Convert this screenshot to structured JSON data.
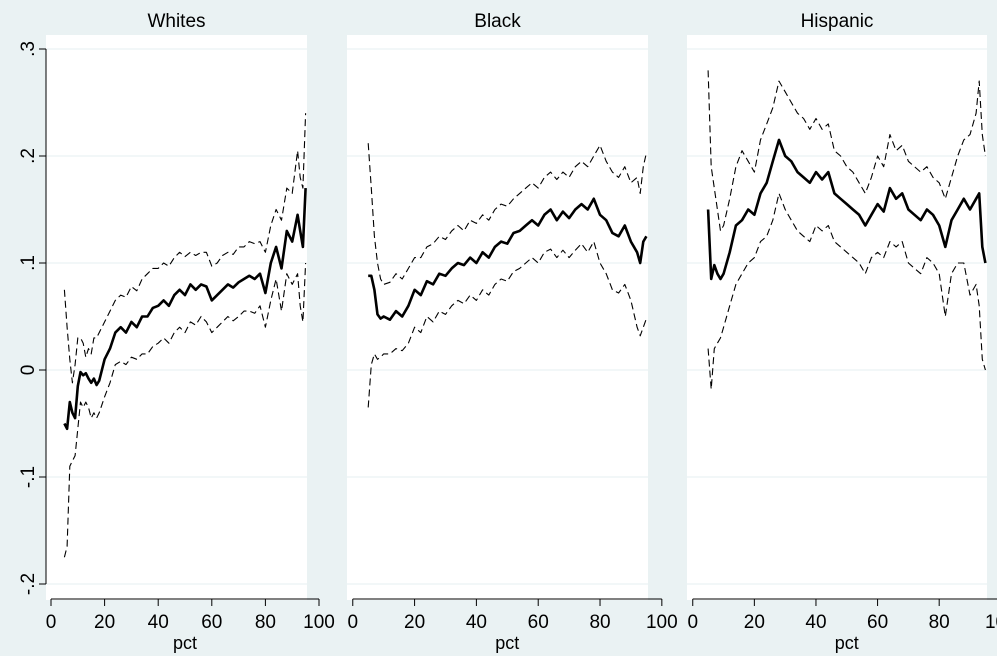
{
  "chart_data": {
    "type": "line",
    "shared_xlabel": "pct",
    "xlim": [
      0,
      100
    ],
    "ylim": [
      -0.2,
      0.3
    ],
    "x_ticks": [
      0,
      20,
      40,
      60,
      80,
      100
    ],
    "x_tick_labels": [
      "0",
      "20",
      "40",
      "60",
      "80",
      "100"
    ],
    "y_ticks": [
      -0.2,
      -0.1,
      0,
      0.1,
      0.2,
      0.3
    ],
    "y_tick_labels": [
      "-.2",
      "-.1",
      "0",
      ".1",
      ".2",
      ".3"
    ],
    "grid": true,
    "colors": {
      "background": "#eaf2f3",
      "panel": "#ffffff",
      "grid": "#eaf2f3",
      "line": "#000000"
    },
    "panels": [
      {
        "title": "Whites",
        "xlabel": "pct",
        "series": [
          {
            "style": "solid",
            "x": [
              5,
              6,
              7,
              8,
              9,
              10,
              11,
              12,
              13,
              14,
              15,
              16,
              17,
              18,
              20,
              22,
              24,
              26,
              28,
              30,
              32,
              34,
              36,
              38,
              40,
              42,
              44,
              46,
              48,
              50,
              52,
              54,
              56,
              58,
              60,
              62,
              64,
              66,
              68,
              70,
              72,
              74,
              76,
              78,
              80,
              82,
              84,
              86,
              88,
              90,
              92,
              93,
              94,
              95
            ],
            "y": [
              -0.05,
              -0.055,
              -0.03,
              -0.04,
              -0.045,
              -0.015,
              -0.002,
              -0.005,
              -0.003,
              -0.008,
              -0.012,
              -0.008,
              -0.014,
              -0.01,
              0.01,
              0.02,
              0.035,
              0.04,
              0.035,
              0.045,
              0.04,
              0.05,
              0.05,
              0.058,
              0.06,
              0.065,
              0.06,
              0.07,
              0.075,
              0.07,
              0.08,
              0.075,
              0.08,
              0.078,
              0.065,
              0.07,
              0.075,
              0.08,
              0.077,
              0.082,
              0.085,
              0.088,
              0.085,
              0.09,
              0.072,
              0.1,
              0.115,
              0.095,
              0.13,
              0.12,
              0.145,
              0.13,
              0.115,
              0.17
            ]
          },
          {
            "style": "dashed",
            "x": [
              5,
              6,
              7,
              8,
              9,
              10,
              11,
              12,
              13,
              14,
              15,
              16,
              17,
              18,
              20,
              22,
              24,
              26,
              28,
              30,
              32,
              34,
              36,
              38,
              40,
              42,
              44,
              46,
              48,
              50,
              52,
              54,
              56,
              58,
              60,
              62,
              64,
              66,
              68,
              70,
              72,
              74,
              76,
              78,
              80,
              82,
              84,
              86,
              88,
              90,
              92,
              93,
              94,
              95
            ],
            "y": [
              0.075,
              0.04,
              0.01,
              -0.012,
              0.005,
              0.03,
              0.03,
              0.025,
              0.012,
              0.02,
              0.015,
              0.03,
              0.03,
              0.035,
              0.045,
              0.055,
              0.065,
              0.07,
              0.068,
              0.078,
              0.074,
              0.085,
              0.09,
              0.095,
              0.095,
              0.1,
              0.097,
              0.105,
              0.11,
              0.106,
              0.11,
              0.107,
              0.11,
              0.11,
              0.097,
              0.1,
              0.107,
              0.11,
              0.108,
              0.115,
              0.115,
              0.12,
              0.118,
              0.12,
              0.11,
              0.135,
              0.15,
              0.14,
              0.17,
              0.165,
              0.205,
              0.18,
              0.17,
              0.24
            ]
          },
          {
            "style": "dashed",
            "x": [
              5,
              6,
              7,
              8,
              9,
              10,
              11,
              12,
              13,
              14,
              15,
              16,
              17,
              18,
              20,
              22,
              24,
              26,
              28,
              30,
              32,
              34,
              36,
              38,
              40,
              42,
              44,
              46,
              48,
              50,
              52,
              54,
              56,
              58,
              60,
              62,
              64,
              66,
              68,
              70,
              72,
              74,
              76,
              78,
              80,
              82,
              84,
              86,
              88,
              90,
              92,
              93,
              94,
              95
            ],
            "y": [
              -0.175,
              -0.165,
              -0.09,
              -0.085,
              -0.08,
              -0.055,
              -0.03,
              -0.035,
              -0.03,
              -0.035,
              -0.045,
              -0.04,
              -0.045,
              -0.04,
              -0.025,
              -0.012,
              0.005,
              0.008,
              0.005,
              0.012,
              0.01,
              0.015,
              0.015,
              0.022,
              0.025,
              0.03,
              0.025,
              0.035,
              0.04,
              0.035,
              0.045,
              0.042,
              0.05,
              0.045,
              0.035,
              0.04,
              0.045,
              0.05,
              0.046,
              0.05,
              0.055,
              0.055,
              0.053,
              0.06,
              0.04,
              0.065,
              0.085,
              0.055,
              0.09,
              0.08,
              0.09,
              0.06,
              0.045,
              0.1
            ]
          }
        ]
      },
      {
        "title": "Black",
        "xlabel": "pct",
        "series": [
          {
            "style": "solid",
            "x": [
              5,
              6,
              7,
              8,
              9,
              10,
              12,
              14,
              16,
              18,
              20,
              22,
              24,
              26,
              28,
              30,
              32,
              34,
              36,
              38,
              40,
              42,
              44,
              46,
              48,
              50,
              52,
              54,
              56,
              58,
              60,
              62,
              64,
              66,
              68,
              70,
              72,
              74,
              76,
              78,
              80,
              82,
              84,
              86,
              88,
              90,
              92,
              93,
              94,
              95
            ],
            "y": [
              0.088,
              0.088,
              0.075,
              0.052,
              0.048,
              0.05,
              0.047,
              0.055,
              0.05,
              0.06,
              0.075,
              0.07,
              0.083,
              0.08,
              0.09,
              0.088,
              0.095,
              0.1,
              0.098,
              0.105,
              0.1,
              0.11,
              0.105,
              0.115,
              0.12,
              0.118,
              0.128,
              0.13,
              0.135,
              0.14,
              0.135,
              0.145,
              0.15,
              0.14,
              0.148,
              0.142,
              0.15,
              0.155,
              0.15,
              0.16,
              0.145,
              0.14,
              0.128,
              0.125,
              0.135,
              0.12,
              0.11,
              0.1,
              0.12,
              0.125
            ]
          },
          {
            "style": "dashed",
            "x": [
              5,
              6,
              7,
              8,
              9,
              10,
              12,
              14,
              16,
              18,
              20,
              22,
              24,
              26,
              28,
              30,
              32,
              34,
              36,
              38,
              40,
              42,
              44,
              46,
              48,
              50,
              52,
              54,
              56,
              58,
              60,
              62,
              64,
              66,
              68,
              70,
              72,
              74,
              76,
              78,
              80,
              82,
              84,
              86,
              88,
              90,
              92,
              93,
              94,
              95
            ],
            "y": [
              0.212,
              0.17,
              0.125,
              0.1,
              0.085,
              0.08,
              0.082,
              0.09,
              0.085,
              0.095,
              0.105,
              0.105,
              0.115,
              0.118,
              0.125,
              0.122,
              0.13,
              0.135,
              0.13,
              0.14,
              0.137,
              0.145,
              0.14,
              0.15,
              0.155,
              0.153,
              0.16,
              0.165,
              0.17,
              0.175,
              0.17,
              0.18,
              0.185,
              0.178,
              0.185,
              0.18,
              0.19,
              0.195,
              0.19,
              0.2,
              0.21,
              0.195,
              0.185,
              0.18,
              0.19,
              0.175,
              0.18,
              0.165,
              0.19,
              0.203
            ]
          },
          {
            "style": "dashed",
            "x": [
              5,
              6,
              7,
              8,
              9,
              10,
              12,
              14,
              16,
              18,
              20,
              22,
              24,
              26,
              28,
              30,
              32,
              34,
              36,
              38,
              40,
              42,
              44,
              46,
              48,
              50,
              52,
              54,
              56,
              58,
              60,
              62,
              64,
              66,
              68,
              70,
              72,
              74,
              76,
              78,
              80,
              82,
              84,
              86,
              88,
              90,
              92,
              93,
              94,
              95
            ],
            "y": [
              -0.035,
              0.005,
              0.015,
              0.01,
              0.012,
              0.015,
              0.015,
              0.02,
              0.018,
              0.025,
              0.04,
              0.035,
              0.05,
              0.045,
              0.055,
              0.052,
              0.06,
              0.065,
              0.062,
              0.07,
              0.065,
              0.075,
              0.07,
              0.08,
              0.085,
              0.083,
              0.092,
              0.095,
              0.1,
              0.105,
              0.1,
              0.11,
              0.113,
              0.105,
              0.112,
              0.105,
              0.112,
              0.118,
              0.11,
              0.12,
              0.1,
              0.09,
              0.075,
              0.072,
              0.08,
              0.065,
              0.04,
              0.032,
              0.04,
              0.048
            ]
          }
        ]
      },
      {
        "title": "Hispanic",
        "xlabel": "pct",
        "series": [
          {
            "style": "solid",
            "x": [
              5,
              6,
              7,
              8,
              9,
              10,
              12,
              14,
              16,
              18,
              20,
              22,
              24,
              26,
              28,
              30,
              32,
              34,
              36,
              38,
              40,
              42,
              44,
              46,
              48,
              50,
              52,
              54,
              56,
              58,
              60,
              62,
              64,
              66,
              68,
              70,
              72,
              74,
              76,
              78,
              80,
              82,
              84,
              86,
              88,
              90,
              92,
              93,
              94,
              95
            ],
            "y": [
              0.15,
              0.085,
              0.098,
              0.09,
              0.085,
              0.09,
              0.11,
              0.135,
              0.14,
              0.15,
              0.145,
              0.165,
              0.175,
              0.195,
              0.215,
              0.2,
              0.195,
              0.185,
              0.18,
              0.175,
              0.185,
              0.178,
              0.185,
              0.165,
              0.16,
              0.155,
              0.15,
              0.145,
              0.135,
              0.145,
              0.155,
              0.148,
              0.17,
              0.16,
              0.165,
              0.15,
              0.145,
              0.14,
              0.15,
              0.145,
              0.135,
              0.115,
              0.14,
              0.15,
              0.16,
              0.15,
              0.16,
              0.165,
              0.115,
              0.1
            ]
          },
          {
            "style": "dashed",
            "x": [
              5,
              6,
              7,
              8,
              9,
              10,
              12,
              14,
              16,
              18,
              20,
              22,
              24,
              26,
              28,
              30,
              32,
              34,
              36,
              38,
              40,
              42,
              44,
              46,
              48,
              50,
              52,
              54,
              56,
              58,
              60,
              62,
              64,
              66,
              68,
              70,
              72,
              74,
              76,
              78,
              80,
              82,
              84,
              86,
              88,
              90,
              92,
              93,
              94,
              95
            ],
            "y": [
              0.28,
              0.19,
              0.17,
              0.15,
              0.13,
              0.135,
              0.16,
              0.19,
              0.205,
              0.195,
              0.185,
              0.215,
              0.23,
              0.245,
              0.27,
              0.26,
              0.25,
              0.24,
              0.235,
              0.225,
              0.235,
              0.225,
              0.23,
              0.205,
              0.2,
              0.19,
              0.185,
              0.175,
              0.165,
              0.18,
              0.2,
              0.19,
              0.22,
              0.205,
              0.21,
              0.195,
              0.19,
              0.185,
              0.19,
              0.18,
              0.175,
              0.16,
              0.18,
              0.2,
              0.215,
              0.22,
              0.24,
              0.27,
              0.22,
              0.2
            ]
          },
          {
            "style": "dashed",
            "x": [
              5,
              6,
              7,
              8,
              9,
              10,
              12,
              14,
              16,
              18,
              20,
              22,
              24,
              26,
              28,
              30,
              32,
              34,
              36,
              38,
              40,
              42,
              44,
              46,
              48,
              50,
              52,
              54,
              56,
              58,
              60,
              62,
              64,
              66,
              68,
              70,
              72,
              74,
              76,
              78,
              80,
              82,
              84,
              86,
              88,
              90,
              92,
              93,
              94,
              95
            ],
            "y": [
              0.02,
              -0.018,
              0.02,
              0.025,
              0.03,
              0.04,
              0.06,
              0.08,
              0.09,
              0.1,
              0.105,
              0.12,
              0.125,
              0.14,
              0.165,
              0.15,
              0.14,
              0.13,
              0.125,
              0.12,
              0.135,
              0.13,
              0.135,
              0.12,
              0.115,
              0.11,
              0.105,
              0.1,
              0.09,
              0.105,
              0.11,
              0.105,
              0.12,
              0.115,
              0.12,
              0.1,
              0.095,
              0.09,
              0.105,
              0.1,
              0.09,
              0.05,
              0.09,
              0.1,
              0.1,
              0.07,
              0.08,
              0.06,
              0.01,
              0.0
            ]
          }
        ]
      }
    ]
  }
}
